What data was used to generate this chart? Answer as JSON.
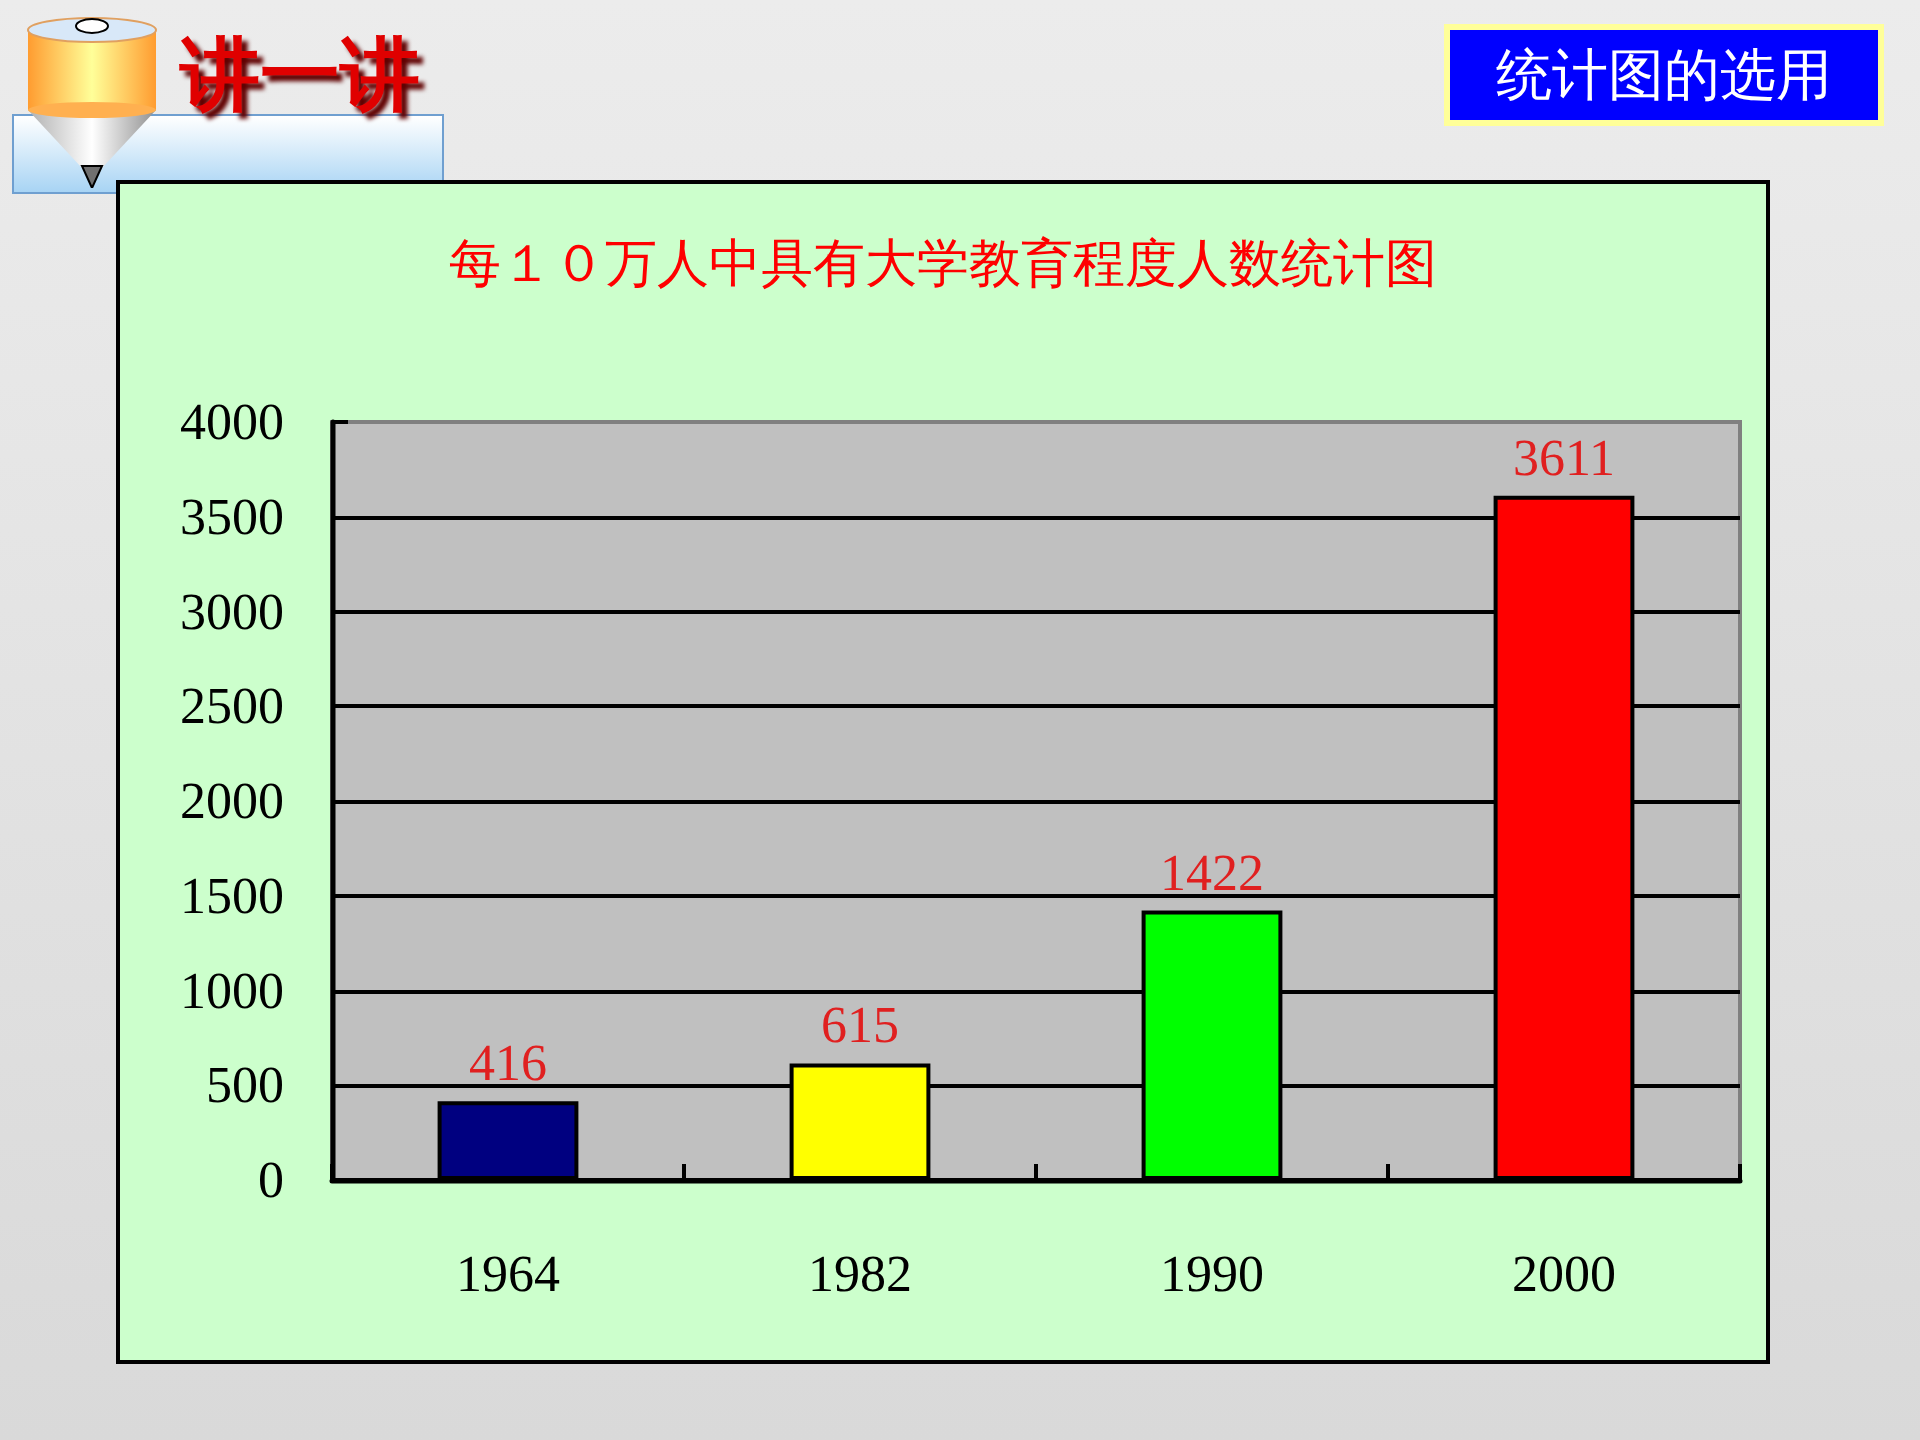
{
  "chart_data": {
    "type": "bar",
    "title": "每１０万人中具有大学教育程度人数统计图",
    "annotations": [
      "讲一讲",
      "统计图的选用"
    ],
    "categories": [
      "1964",
      "1982",
      "1990",
      "2000"
    ],
    "values": [
      416,
      615,
      1422,
      3611
    ],
    "colors": [
      "#000080",
      "#ffff00",
      "#00ff00",
      "#ff0000"
    ],
    "ylim": [
      0,
      4000
    ],
    "yticks": [
      0,
      500,
      1000,
      1500,
      2000,
      2500,
      3000,
      3500,
      4000
    ],
    "grid": "y",
    "data_labels": true
  }
}
